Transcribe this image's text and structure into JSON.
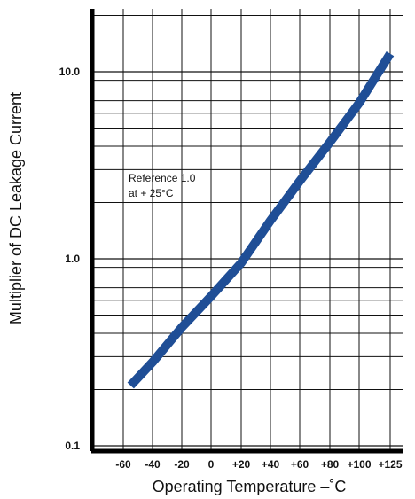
{
  "chart_data": {
    "type": "line",
    "title": "",
    "xlabel": "Operating Temperature –˚C",
    "ylabel": "Multiplier of DC Leakage Current",
    "x_tick_labels": [
      "-60",
      "-40",
      "-20",
      "0",
      "+20",
      "+40",
      "+60",
      "+80",
      "+100",
      "+125"
    ],
    "y_tick_labels": [
      "10.0",
      "1.0",
      "0.1"
    ],
    "xlim": [
      -75,
      125
    ],
    "ylim": [
      0.1,
      20
    ],
    "y_scale": "log",
    "grid": true,
    "annotation": {
      "line1": "Reference 1.0",
      "line2": "at + 25°C"
    },
    "series": [
      {
        "color": "#1f4e96",
        "x": [
          -55,
          -40,
          -20,
          0,
          20,
          40,
          60,
          80,
          100,
          125
        ],
        "y": [
          0.21,
          0.28,
          0.43,
          0.63,
          0.95,
          1.6,
          2.6,
          4.2,
          6.8,
          12.5
        ]
      }
    ]
  }
}
